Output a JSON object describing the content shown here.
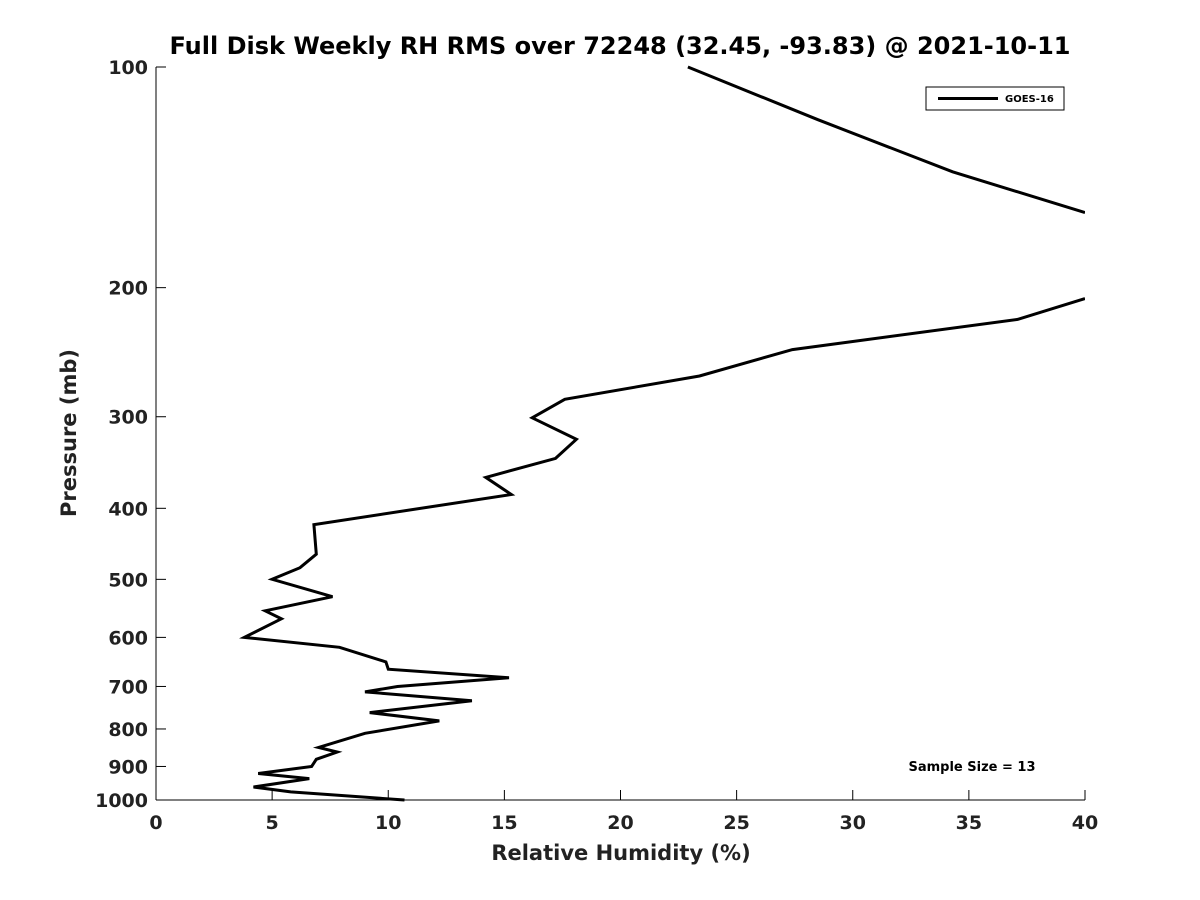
{
  "chart_data": {
    "type": "line",
    "title": "Full Disk Weekly RH RMS over 72248 (32.45, -93.83) @ 2021-10-11",
    "xlabel": "Relative Humidity (%)",
    "ylabel": "Pressure (mb)",
    "xlim": [
      0,
      40
    ],
    "ylim": [
      100,
      1000
    ],
    "yscale": "log",
    "yaxis_inverted": true,
    "xticks": [
      0,
      5,
      10,
      15,
      20,
      25,
      30,
      35,
      40
    ],
    "yticks": [
      100,
      200,
      300,
      400,
      500,
      600,
      700,
      800,
      900,
      1000
    ],
    "grid": false,
    "legend_position": "top-right",
    "series_color": "#000000",
    "series": [
      {
        "name": "GOES-16",
        "points": [
          [
            22.9,
            100
          ],
          [
            28.5,
            118
          ],
          [
            34.3,
            139
          ],
          [
            40.0,
            158
          ],
          [
            null,
            null
          ],
          [
            40.0,
            207
          ],
          [
            37.1,
            221
          ],
          [
            27.4,
            243
          ],
          [
            23.4,
            264
          ],
          [
            17.6,
            284
          ],
          [
            16.2,
            301
          ],
          [
            18.1,
            322
          ],
          [
            17.2,
            342
          ],
          [
            14.2,
            363
          ],
          [
            15.3,
            383
          ],
          [
            6.8,
            421
          ],
          [
            6.9,
            462
          ],
          [
            6.2,
            482
          ],
          [
            5.0,
            500
          ],
          [
            7.6,
            528
          ],
          [
            4.7,
            552
          ],
          [
            5.4,
            566
          ],
          [
            3.8,
            600
          ],
          [
            7.9,
            619
          ],
          [
            9.9,
            648
          ],
          [
            10.0,
            663
          ],
          [
            15.2,
            681
          ],
          [
            10.4,
            700
          ],
          [
            9.0,
            712
          ],
          [
            13.6,
            732
          ],
          [
            9.2,
            760
          ],
          [
            12.2,
            780
          ],
          [
            9.0,
            811
          ],
          [
            7.0,
            848
          ],
          [
            7.8,
            860
          ],
          [
            6.9,
            880
          ],
          [
            6.7,
            900
          ],
          [
            4.4,
            920
          ],
          [
            6.6,
            935
          ],
          [
            4.2,
            960
          ],
          [
            5.8,
            975
          ],
          [
            10.7,
            1000
          ]
        ]
      }
    ],
    "annotation": "Sample Size = 13"
  }
}
